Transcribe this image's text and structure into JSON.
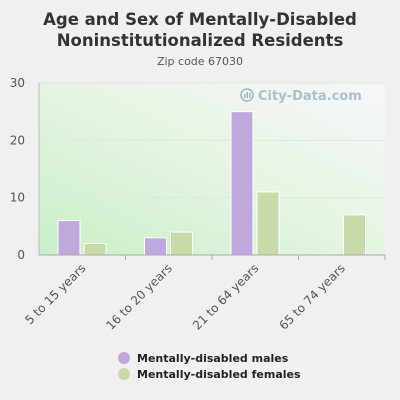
{
  "title_line1": "Age and Sex of Mentally-Disabled",
  "title_line2": "Noninstitutionalized Residents",
  "subtitle": "Zip code 67030",
  "watermark": "City-Data.com",
  "chart_data": {
    "type": "bar",
    "title": "Age and Sex of Mentally-Disabled Noninstitutionalized Residents",
    "subtitle": "Zip code 67030",
    "categories": [
      "5 to 15 years",
      "16 to 20 years",
      "21 to 64 years",
      "65 to 74 years"
    ],
    "series": [
      {
        "name": "Mentally-disabled males",
        "color": "#c0a8dc",
        "values": [
          6,
          3,
          25,
          0
        ]
      },
      {
        "name": "Mentally-disabled females",
        "color": "#c8daa8",
        "values": [
          2,
          4,
          11,
          7
        ]
      }
    ],
    "ylim": [
      0,
      30
    ],
    "yticks": [
      0,
      10,
      20,
      30
    ],
    "grid": true,
    "legend": "bottom"
  }
}
